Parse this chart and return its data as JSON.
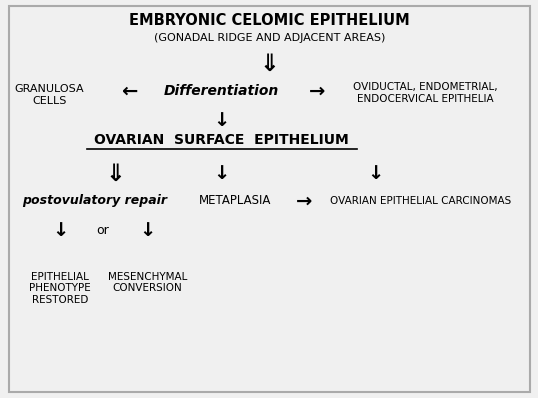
{
  "fig_bg": "#f0f0f0",
  "title1": "EMBRYONIC CELOMIC EPITHELIUM",
  "title2": "(GONADAL RIDGE AND ADJACENT AREAS)",
  "ose_label": "OVARIAN  SURFACE  EPITHELIUM",
  "granulosa": "GRANULOSA\nCELLS",
  "differentiation": "Differentiation",
  "oviductal": "OVIDUCTAL, ENDOMETRIAL,\nENDOCERVICAL EPITHELIA",
  "postovulatory": "postovulatory repair",
  "metaplasia": "METAPLASIA",
  "ovarian_ca": "OVARIAN EPITHELIAL CARCINOMAS",
  "epithelial": "EPITHELIAL\nPHENOTYPE\nRESTORED",
  "mesenchymal": "MESENCHYMAL\nCONVERSION",
  "or_label": "or",
  "dbl_down": "⇓",
  "sgl_down": "↓",
  "arr_right": "→",
  "arr_left": "←"
}
